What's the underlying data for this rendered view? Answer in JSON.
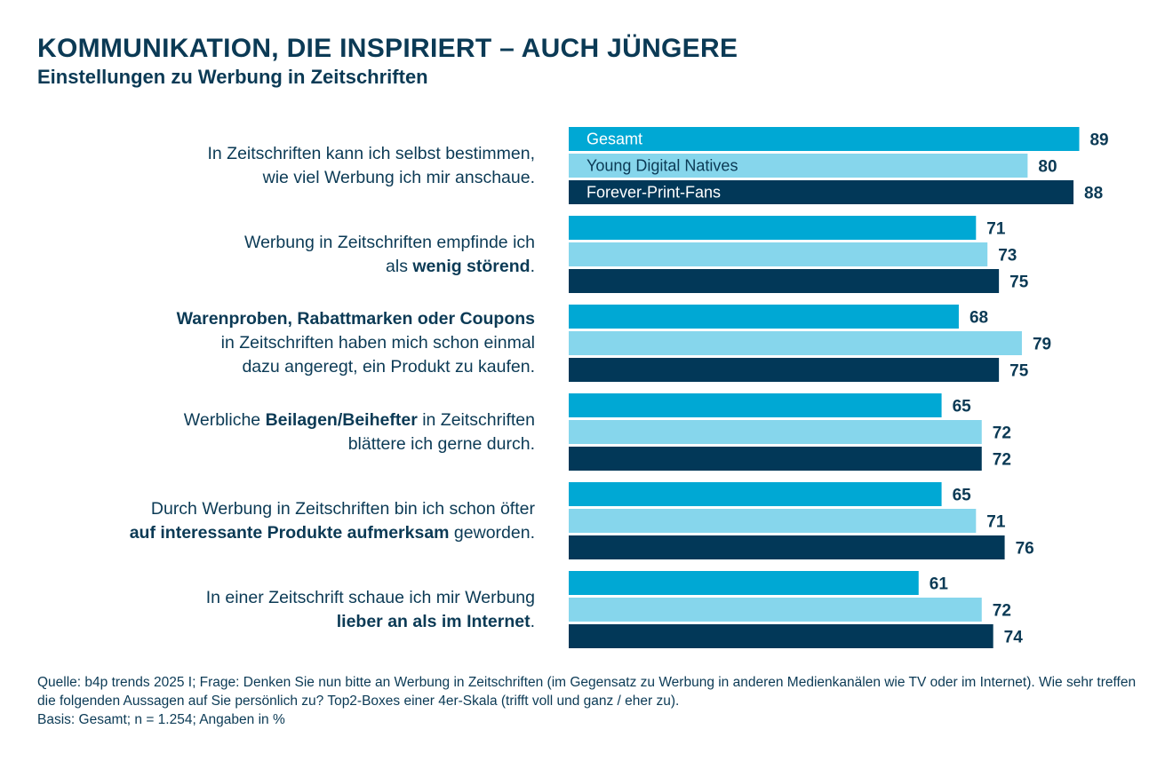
{
  "header": {
    "title": "KOMMUNIKATION, DIE INSPIRIERT – AUCH JÜNGERE",
    "subtitle": "Einstellungen zu Werbung in Zeitschriften"
  },
  "statements": [
    {
      "lines": [
        [
          {
            "t": "In Zeitschriften kann ich selbst bestimmen,",
            "b": false
          }
        ],
        [
          {
            "t": "wie viel Werbung ich mir anschaue.",
            "b": false
          }
        ]
      ]
    },
    {
      "lines": [
        [
          {
            "t": "Werbung in Zeitschriften empfinde ich",
            "b": false
          }
        ],
        [
          {
            "t": "als ",
            "b": false
          },
          {
            "t": "wenig störend",
            "b": true
          },
          {
            "t": ".",
            "b": false
          }
        ]
      ]
    },
    {
      "lines": [
        [
          {
            "t": "Warenproben, Rabattmarken oder Coupons",
            "b": true
          }
        ],
        [
          {
            "t": "in Zeitschriften haben mich schon einmal",
            "b": false
          }
        ],
        [
          {
            "t": "dazu angeregt, ein Produkt zu kaufen.",
            "b": false
          }
        ]
      ]
    },
    {
      "lines": [
        [
          {
            "t": "Werbliche ",
            "b": false
          },
          {
            "t": "Beilagen/Beihefter",
            "b": true
          },
          {
            "t": " in Zeitschriften",
            "b": false
          }
        ],
        [
          {
            "t": "blättere ich gerne durch.",
            "b": false
          }
        ]
      ]
    },
    {
      "lines": [
        [
          {
            "t": "Durch Werbung in Zeitschriften bin ich schon öfter",
            "b": false
          }
        ],
        [
          {
            "t": "auf interessante Produkte aufmerksam",
            "b": true
          },
          {
            "t": " geworden.",
            "b": false
          }
        ]
      ]
    },
    {
      "lines": [
        [
          {
            "t": "In einer Zeitschrift schaue ich mir Werbung",
            "b": false
          }
        ],
        [
          {
            "t": "lieber an als im Internet",
            "b": true
          },
          {
            "t": ".",
            "b": false
          }
        ]
      ]
    }
  ],
  "chart_data": {
    "type": "bar",
    "orientation": "horizontal",
    "categories": [
      "In Zeitschriften kann ich selbst bestimmen, wie viel Werbung ich mir anschaue.",
      "Werbung in Zeitschriften empfinde ich als wenig störend.",
      "Warenproben, Rabattmarken oder Coupons in Zeitschriften haben mich schon einmal dazu angeregt, ein Produkt zu kaufen.",
      "Werbliche Beilagen/Beihefter in Zeitschriften blättere ich gerne durch.",
      "Durch Werbung in Zeitschriften bin ich schon öfter auf interessante Produkte aufmerksam geworden.",
      "In einer Zeitschrift schaue ich mir Werbung lieber an als im Internet."
    ],
    "series": [
      {
        "name": "Gesamt",
        "color": "#00a8d4",
        "label_color": "#ffffff",
        "values": [
          89,
          71,
          68,
          65,
          65,
          61
        ]
      },
      {
        "name": "Young Digital Natives",
        "color": "#86d6ec",
        "label_color": "#0b3a55",
        "values": [
          80,
          73,
          79,
          72,
          71,
          72
        ]
      },
      {
        "name": "Forever-Print-Fans",
        "color": "#023858",
        "label_color": "#ffffff",
        "values": [
          88,
          75,
          75,
          72,
          76,
          74
        ]
      }
    ],
    "xlim": [
      0,
      100
    ],
    "grid": false,
    "legend": "inside-first-group-bars",
    "data_labels": true
  },
  "footnote": {
    "lines": [
      "Quelle: b4p trends 2025 I; Frage: Denken Sie nun bitte an Werbung in Zeitschriften (im Gegensatz zu Werbung in anderen Medienkanälen wie TV oder im Internet). Wie sehr treffen die folgenden Aussagen auf Sie persönlich zu? Top2-Boxes einer 4er-Skala (trifft voll und ganz / eher zu).",
      "Basis: Gesamt; n = 1.254; Angaben in %"
    ]
  }
}
